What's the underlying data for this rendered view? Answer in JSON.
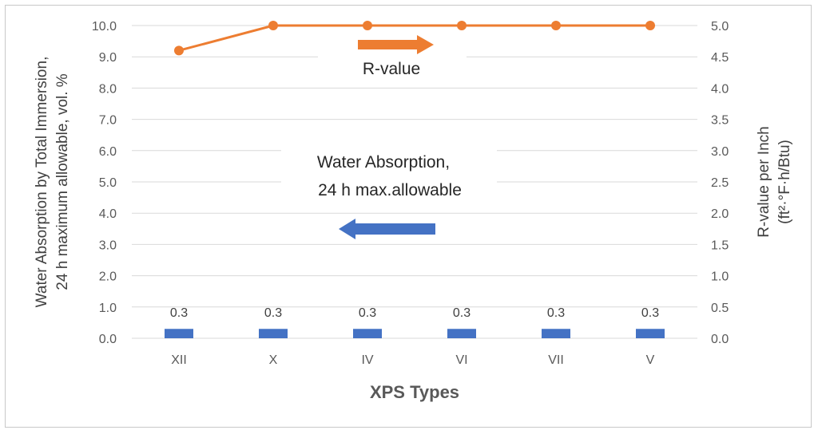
{
  "chart_data": {
    "type": "bar+line",
    "categories": [
      "XII",
      "X",
      "IV",
      "VI",
      "VII",
      "V"
    ],
    "series": [
      {
        "name": "Water Absorption, 24 h max.allowable",
        "type": "bar",
        "axis": "left",
        "values": [
          0.3,
          0.3,
          0.3,
          0.3,
          0.3,
          0.3
        ],
        "data_labels": [
          "0.3",
          "0.3",
          "0.3",
          "0.3",
          "0.3",
          "0.3"
        ],
        "color": "#4472C4"
      },
      {
        "name": "R-value",
        "type": "line",
        "axis": "right",
        "values": [
          4.6,
          5.0,
          5.0,
          5.0,
          5.0,
          5.0
        ],
        "color": "#ED7D31"
      }
    ],
    "xlabel": "XPS Types",
    "ylabel_left_lines": [
      "Water Absorption by Total Immersion,",
      "24 h maximum allowable, vol. %"
    ],
    "ylabel_right_lines": [
      "R-value per Inch",
      "(ft²·°F·h/Btu)"
    ],
    "ylim_left": [
      0,
      10
    ],
    "ylim_right": [
      0,
      5
    ],
    "y_ticks_left": [
      "0.0",
      "1.0",
      "2.0",
      "3.0",
      "4.0",
      "5.0",
      "6.0",
      "7.0",
      "8.0",
      "9.0",
      "10.0"
    ],
    "y_ticks_right": [
      "0.0",
      "0.5",
      "1.0",
      "1.5",
      "2.0",
      "2.5",
      "3.0",
      "3.5",
      "4.0",
      "4.5",
      "5.0"
    ],
    "grid": true,
    "annotations": {
      "rvalue_label": "R-value",
      "water_label_lines": [
        "Water Absorption,",
        "24 h max.allowable"
      ],
      "rvalue_arrow_direction": "right",
      "water_arrow_direction": "left"
    }
  }
}
